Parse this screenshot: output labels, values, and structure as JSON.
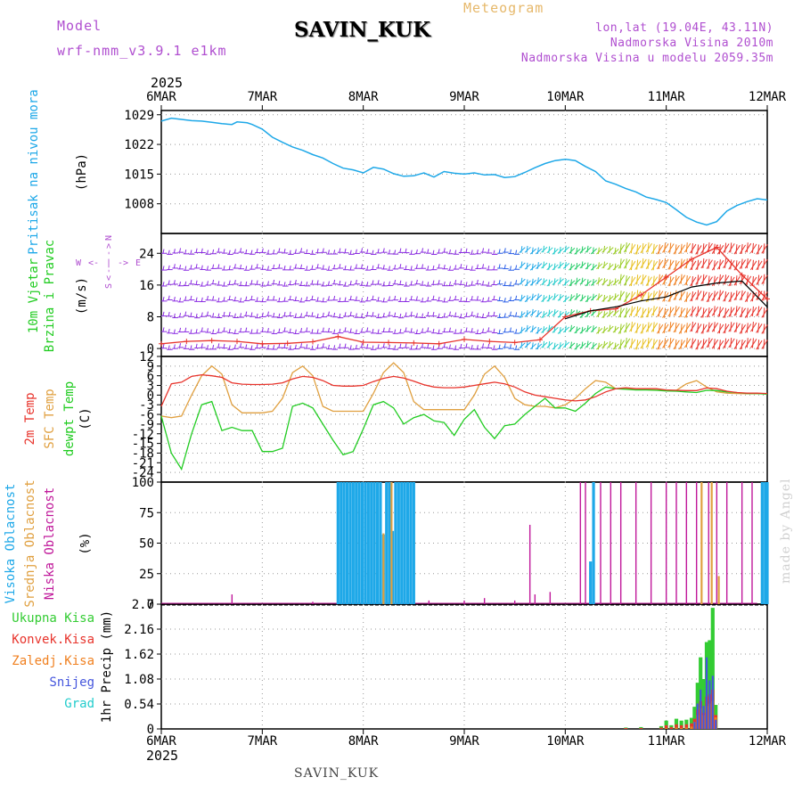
{
  "header": {
    "model_label": "Model",
    "model_value": "wrf-nmm_v3.9.1 e1km",
    "station": "SAVIN_KUK",
    "product": "Meteogram",
    "coords": "lon,lat (19.04E, 43.11N)",
    "elevation": "Nadmorska Visina 2010m",
    "model_elevation": "Nadmorska Visina u modelu 2059.35m"
  },
  "footer": {
    "station": "SAVIN_KUK",
    "credit": "made by Angel"
  },
  "colors": {
    "pressure": "#1ea8e8",
    "wind_speed": "#000000",
    "gust": "#e8342c",
    "temp2m": "#e8342c",
    "sfc_temp": "#e0a040",
    "dewpt": "#22cc22",
    "cloud_high": "#1ea8e8",
    "cloud_mid": "#e0a040",
    "cloud_low": "#c0189a",
    "total_precip": "#33cc33",
    "conv_precip": "#e8342c",
    "frz_precip": "#f08020",
    "snow": "#4455dd",
    "graupel": "#22cccc",
    "label_purple": "#b04fd0"
  },
  "time_axis": {
    "year": "2025",
    "ticks": [
      "6MAR",
      "7MAR",
      "8MAR",
      "9MAR",
      "10MAR",
      "11MAR",
      "12MAR"
    ]
  },
  "chart_data": [
    {
      "type": "line",
      "name": "pressure",
      "ylabel_main": "Pritisak na nivou mora",
      "ylabel_unit": "(hPa)",
      "ylim": [
        1001,
        1030
      ],
      "yticks": [
        1029,
        1022,
        1015,
        1008
      ],
      "grid": true,
      "x": [
        0,
        0.1,
        0.2,
        0.3,
        0.4,
        0.5,
        0.6,
        0.7,
        0.75,
        0.85,
        0.9,
        1.0,
        1.1,
        1.2,
        1.3,
        1.4,
        1.5,
        1.6,
        1.7,
        1.8,
        1.9,
        2.0,
        2.1,
        2.2,
        2.3,
        2.4,
        2.5,
        2.6,
        2.7,
        2.8,
        2.9,
        3.0,
        3.1,
        3.2,
        3.3,
        3.4,
        3.5,
        3.6,
        3.7,
        3.8,
        3.9,
        4.0,
        4.1,
        4.2,
        4.3,
        4.4,
        4.5,
        4.6,
        4.7,
        4.8,
        4.9,
        5.0,
        5.1,
        5.2,
        5.3,
        5.4,
        5.5,
        5.6,
        5.7,
        5.8,
        5.9,
        6.0
      ],
      "values": [
        1027.5,
        1028.2,
        1027.9,
        1027.6,
        1027.5,
        1027.2,
        1026.9,
        1026.7,
        1027.3,
        1027.1,
        1026.7,
        1025.6,
        1023.7,
        1022.5,
        1021.4,
        1020.6,
        1019.6,
        1018.8,
        1017.5,
        1016.4,
        1016.0,
        1015.3,
        1016.6,
        1016.2,
        1015.1,
        1014.5,
        1014.6,
        1015.3,
        1014.3,
        1015.6,
        1015.2,
        1015.0,
        1015.3,
        1014.8,
        1014.9,
        1014.2,
        1014.4,
        1015.4,
        1016.5,
        1017.5,
        1018.2,
        1018.5,
        1018.2,
        1016.8,
        1015.6,
        1013.4,
        1012.6,
        1011.6,
        1010.8,
        1009.6,
        1009.0,
        1008.3,
        1006.6,
        1004.8,
        1003.7,
        1003.0,
        1003.8,
        1006.3,
        1007.6,
        1008.5,
        1009.2,
        1008.9
      ]
    },
    {
      "type": "line",
      "name": "wind",
      "ylabel_main": "10m Vjetar",
      "ylabel_sub": "Brzina i Pravac",
      "ylabel_unit": "(m/s)",
      "compass": {
        "n": "N",
        "s": "S",
        "w": "W",
        "e": "E"
      },
      "ylim": [
        -2,
        29
      ],
      "yticks": [
        0,
        8,
        16,
        24
      ],
      "grid": true,
      "barb_rows_y": [
        24,
        20,
        16,
        12,
        8,
        4,
        0
      ],
      "x": [
        0,
        0.25,
        0.5,
        0.75,
        1.0,
        1.25,
        1.5,
        1.75,
        2.0,
        2.25,
        2.5,
        2.75,
        3.0,
        3.25,
        3.5,
        3.75,
        4.0,
        4.25,
        4.5,
        4.75,
        5.0,
        5.25,
        5.5,
        5.75,
        6.0
      ],
      "series": [
        {
          "name": "gust",
          "values": [
            1.2,
            1.8,
            2.0,
            1.8,
            1.2,
            1.3,
            1.7,
            3.0,
            1.6,
            1.5,
            1.4,
            1.2,
            2.3,
            1.8,
            1.5,
            2.2,
            8.0,
            9.5,
            10.0,
            13.5,
            18.0,
            22.5,
            25.5,
            18.5,
            12.5
          ]
        },
        {
          "name": "wind_speed",
          "values": [
            null,
            null,
            null,
            null,
            null,
            null,
            null,
            null,
            null,
            null,
            null,
            null,
            null,
            null,
            null,
            null,
            7.5,
            9.5,
            10.5,
            12.0,
            13.0,
            15.5,
            16.5,
            17.0,
            10.5
          ]
        }
      ]
    },
    {
      "type": "line",
      "name": "temperature",
      "ylabel_t2m": "2m Temp",
      "ylabel_sfc": "SFC Temp",
      "ylabel_dew": "dewpt Temp",
      "ylabel_unit": "(C)",
      "ylim": [
        -27,
        12
      ],
      "yticks": [
        12,
        9,
        6,
        3,
        0,
        -3,
        -6,
        -9,
        -12,
        -15,
        -18,
        -21,
        -24
      ],
      "grid": true,
      "x": [
        0,
        0.1,
        0.2,
        0.3,
        0.4,
        0.5,
        0.6,
        0.7,
        0.8,
        0.9,
        1.0,
        1.1,
        1.2,
        1.3,
        1.4,
        1.5,
        1.6,
        1.7,
        1.8,
        1.9,
        2.0,
        2.1,
        2.2,
        2.3,
        2.4,
        2.5,
        2.6,
        2.7,
        2.8,
        2.9,
        3.0,
        3.1,
        3.2,
        3.3,
        3.4,
        3.5,
        3.6,
        3.7,
        3.8,
        3.9,
        4.0,
        4.1,
        4.2,
        4.3,
        4.4,
        4.5,
        4.6,
        4.7,
        4.8,
        4.9,
        5.0,
        5.1,
        5.2,
        5.3,
        5.4,
        5.5,
        5.6,
        5.7,
        5.8,
        5.9,
        6.0
      ],
      "series": [
        {
          "name": "2m Temp",
          "values": [
            -3.5,
            3.5,
            4.0,
            5.8,
            6.3,
            6.0,
            5.5,
            3.8,
            3.4,
            3.3,
            3.3,
            3.4,
            3.8,
            5.0,
            5.8,
            5.5,
            4.5,
            3.0,
            2.8,
            2.8,
            3.0,
            4.2,
            5.2,
            5.8,
            5.3,
            4.3,
            3.2,
            2.5,
            2.3,
            2.3,
            2.5,
            3.0,
            3.5,
            4.0,
            3.5,
            2.5,
            1.0,
            0.0,
            -0.5,
            -1.0,
            -1.5,
            -1.8,
            -1.5,
            -0.5,
            1.0,
            2.0,
            2.3,
            2.0,
            2.0,
            2.0,
            1.6,
            1.5,
            1.4,
            1.4,
            2.2,
            2.0,
            1.2,
            0.8,
            0.6,
            0.6,
            0.5
          ]
        },
        {
          "name": "SFC Temp",
          "values": [
            -6.5,
            -7.0,
            -6.5,
            0.0,
            6.0,
            9.0,
            6.5,
            -3.0,
            -5.5,
            -5.5,
            -5.5,
            -5.0,
            -1.0,
            7.0,
            9.0,
            6.0,
            -3.5,
            -5.0,
            -5.0,
            -5.0,
            -5.0,
            0.5,
            7.0,
            10.0,
            7.0,
            -2.0,
            -4.5,
            -4.5,
            -4.5,
            -4.5,
            -4.5,
            0.0,
            6.5,
            9.0,
            5.5,
            -1.0,
            -3.0,
            -3.5,
            -3.5,
            -4.0,
            -3.0,
            -1.0,
            2.0,
            4.5,
            4.0,
            2.0,
            2.0,
            2.0,
            1.8,
            1.6,
            1.5,
            1.5,
            3.5,
            4.5,
            2.5,
            1.0,
            0.6,
            0.5,
            0.4,
            0.4,
            0.5
          ]
        },
        {
          "name": "dewpt Temp",
          "values": [
            -6.5,
            -18.0,
            -23.0,
            -12.0,
            -3.0,
            -2.0,
            -11.0,
            -10.0,
            -11.0,
            -11.0,
            -17.5,
            -17.5,
            -16.5,
            -3.5,
            -2.5,
            -4.0,
            -9.0,
            -14.0,
            -18.5,
            -17.5,
            -10.5,
            -3.0,
            -2.0,
            -4.0,
            -9.0,
            -7.0,
            -6.0,
            -8.0,
            -8.5,
            -12.5,
            -7.5,
            -4.5,
            -10.0,
            -13.5,
            -9.5,
            -9.0,
            -6.0,
            -3.5,
            -1.0,
            -4.0,
            -4.0,
            -5.0,
            -2.5,
            0.5,
            2.5,
            2.0,
            1.8,
            1.6,
            1.6,
            1.5,
            1.3,
            1.2,
            1.0,
            0.8,
            1.5,
            1.4,
            1.0,
            0.8,
            0.5,
            0.5,
            0.3
          ]
        }
      ]
    },
    {
      "type": "bar",
      "name": "cloud_cover",
      "ylabel_high": "Visoka Oblacnost",
      "ylabel_mid": "Srednja Oblacnost",
      "ylabel_low": "Niska Oblacnost",
      "ylabel_unit": "(%)",
      "ylim": [
        0,
        100
      ],
      "yticks": [
        100,
        75,
        50,
        25,
        0
      ],
      "grid": true,
      "series": [
        {
          "name": "Visoka Oblacnost",
          "x": [
            1.75,
            1.78,
            1.81,
            1.84,
            1.87,
            1.9,
            1.93,
            1.96,
            1.99,
            2.02,
            2.05,
            2.08,
            2.11,
            2.14,
            2.17,
            2.2,
            2.23,
            2.26,
            2.29,
            2.32,
            2.35,
            2.38,
            2.41,
            2.44,
            2.47,
            2.5,
            4.25,
            4.28,
            5.95,
            5.98,
            6.0
          ],
          "values": [
            100,
            100,
            100,
            100,
            100,
            100,
            100,
            100,
            100,
            100,
            100,
            100,
            100,
            100,
            100,
            57,
            100,
            100,
            60,
            100,
            100,
            100,
            100,
            100,
            100,
            100,
            35,
            100,
            100,
            100,
            100
          ]
        },
        {
          "name": "Srednja Oblacnost",
          "x": [
            2.2,
            2.28,
            5.35,
            5.45,
            5.52
          ],
          "values": [
            58,
            100,
            100,
            100,
            23
          ]
        },
        {
          "name": "Niska Oblacnost",
          "x": [
            0.7,
            1.5,
            2.65,
            3.0,
            3.2,
            3.5,
            3.65,
            3.7,
            3.85,
            4.15,
            4.2,
            4.35,
            4.45,
            4.55,
            4.7,
            4.85,
            5.0,
            5.1,
            5.2,
            5.3,
            5.42,
            5.5,
            5.6,
            5.75,
            5.85
          ],
          "values": [
            8,
            2,
            3,
            3,
            5,
            3,
            65,
            8,
            10,
            100,
            100,
            100,
            100,
            100,
            100,
            100,
            100,
            100,
            100,
            100,
            100,
            100,
            100,
            100,
            100
          ]
        }
      ]
    },
    {
      "type": "bar",
      "name": "precipitation",
      "ylabel_unit": "1hr Precip (mm)",
      "legend": [
        "Ukupna Kisa",
        "Konvek.Kisa",
        "Zaledj.Kisa",
        "Snijeg",
        "Grad"
      ],
      "ylim": [
        0,
        2.7
      ],
      "yticks": [
        0,
        0.54,
        1.08,
        1.62,
        2.16,
        2.7
      ],
      "grid": true,
      "x": [
        4.6,
        4.75,
        4.95,
        5.0,
        5.05,
        5.1,
        5.15,
        5.2,
        5.25,
        5.28,
        5.31,
        5.34,
        5.37,
        5.4,
        5.43,
        5.46,
        5.49
      ],
      "series": [
        {
          "name": "Ukupna Kisa",
          "values": [
            0.03,
            0.04,
            0.06,
            0.18,
            0.08,
            0.22,
            0.18,
            0.2,
            0.24,
            0.48,
            1.0,
            1.55,
            1.08,
            1.88,
            1.92,
            2.62,
            0.52
          ]
        },
        {
          "name": "Konvek.Kisa",
          "values": [
            0.02,
            0.02,
            0.03,
            0.08,
            0.04,
            0.1,
            0.08,
            0.1,
            0.12,
            0.22,
            0.42,
            0.6,
            0.35,
            0.7,
            0.75,
            0.85,
            0.3
          ]
        },
        {
          "name": "Zaledj.Kisa",
          "values": [
            0,
            0,
            0,
            0.02,
            0,
            0.03,
            0.02,
            0.03,
            0.05,
            0.15,
            0.3,
            0.45,
            0.3,
            0.5,
            0.55,
            0.6,
            0.25
          ]
        },
        {
          "name": "Snijeg",
          "values": [
            0,
            0,
            0,
            0,
            0,
            0,
            0,
            0,
            0,
            0.15,
            0.55,
            0.85,
            0.5,
            1.55,
            1.05,
            1.15,
            0.2
          ]
        },
        {
          "name": "Grad",
          "values": [
            0,
            0,
            0,
            0,
            0,
            0,
            0,
            0,
            0,
            0,
            0,
            0,
            0,
            0,
            0,
            0,
            0
          ]
        }
      ]
    }
  ]
}
